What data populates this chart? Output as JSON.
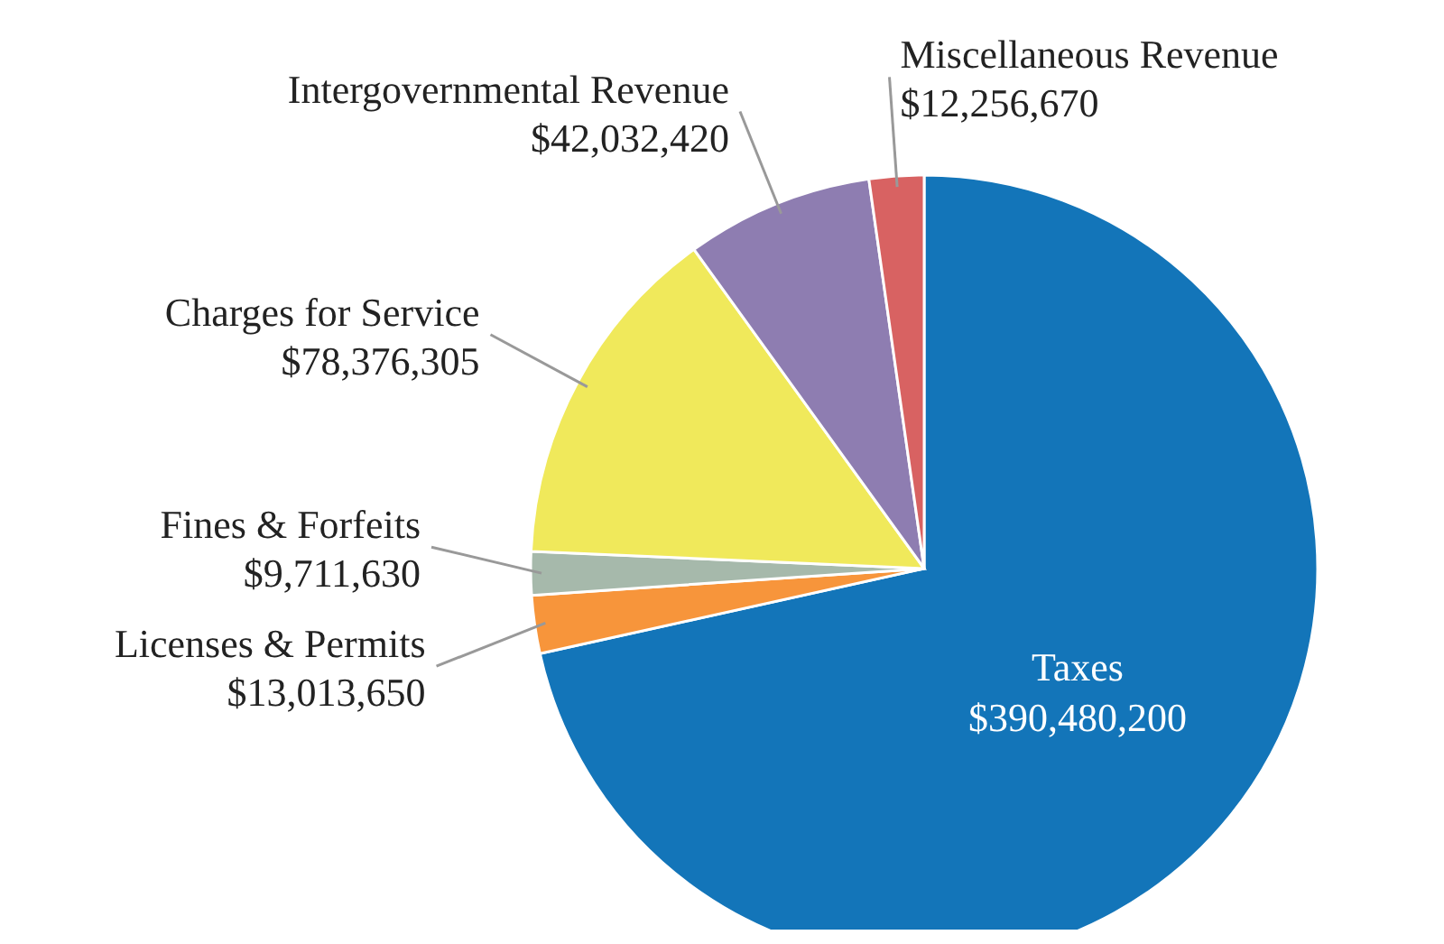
{
  "chart_data": {
    "type": "pie",
    "categories": [
      "Taxes",
      "Licenses & Permits",
      "Fines & Forfeits",
      "Charges for Service",
      "Intergovernmental Revenue",
      "Miscellaneous Revenue"
    ],
    "values": [
      390480200,
      13013650,
      9711630,
      78376305,
      42032420,
      12256670
    ],
    "value_labels": [
      "$390,480,200",
      "$13,013,650",
      "$9,711,630",
      "$78,376,305",
      "$42,032,420",
      "$12,256,670"
    ],
    "colors": [
      "#1375b9",
      "#f7953b",
      "#a6b9ab",
      "#f0e95b",
      "#8e7db1",
      "#d86262"
    ]
  }
}
